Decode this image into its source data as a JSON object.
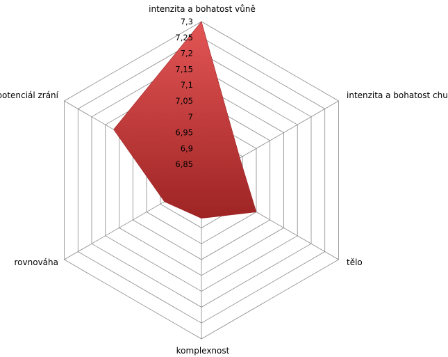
{
  "chart_data": {
    "type": "radar",
    "categories": [
      "intenzita a bohatost vůně",
      "intenzita a bohatost chuti",
      "tělo",
      "komplexnost",
      "rovnováha",
      "potenciál zrání"
    ],
    "series": [
      {
        "values": [
          7.3,
          6.94,
          7.0,
          6.92,
          6.935,
          7.12
        ]
      }
    ],
    "rlim": [
      6.8,
      7.3
    ],
    "ticks": [
      6.85,
      6.9,
      6.95,
      7.0,
      7.05,
      7.1,
      7.15,
      7.2,
      7.25,
      7.3
    ],
    "tick_labels": [
      "6,85",
      "6,9",
      "6,95",
      "7",
      "7,05",
      "7,1",
      "7,15",
      "7,2",
      "7,25",
      "7,3"
    ],
    "grid": true,
    "legend": "none",
    "colors": {
      "fill": "#c93a3a",
      "fill_light": "#e35555",
      "fill_dark": "#9e2424",
      "grid": "#888888",
      "spoke": "#888888"
    }
  }
}
